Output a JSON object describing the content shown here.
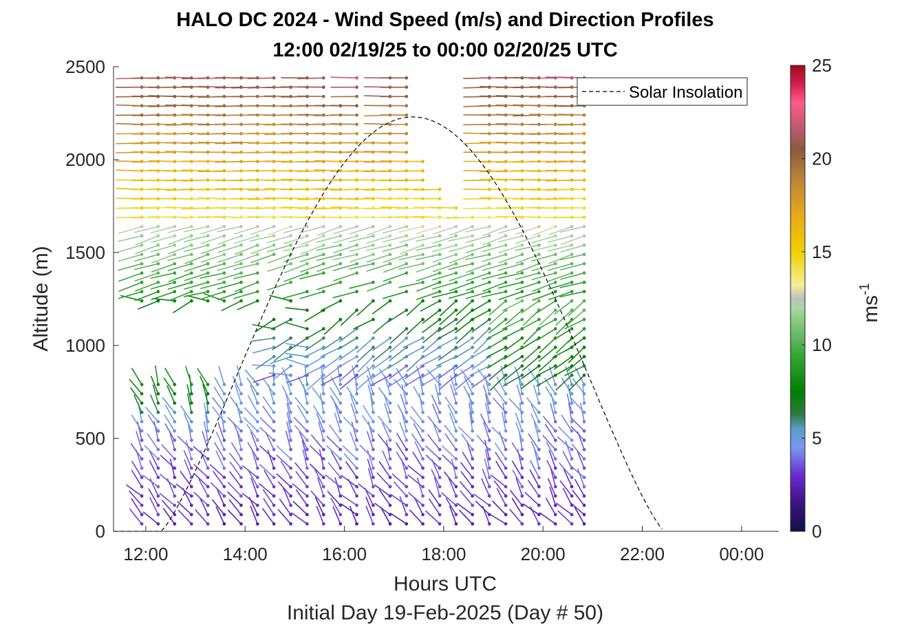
{
  "chart_data": {
    "type": "wind-barb-profile",
    "title_line1": "HALO DC 2024 - Wind Speed (m/s) and Direction Profiles",
    "title_line2": "12:00 02/19/25 to 00:00 02/20/25  UTC",
    "xlabel": "Hours UTC",
    "subtitle": "Initial Day 19-Feb-2025 (Day # 50)",
    "ylabel": "Altitude (m)",
    "xlim_hours": [
      11.35,
      24.75
    ],
    "ylim": [
      0,
      2500
    ],
    "x_ticks": [
      {
        "hour": 12,
        "label": "12:00"
      },
      {
        "hour": 14,
        "label": "14:00"
      },
      {
        "hour": 16,
        "label": "16:00"
      },
      {
        "hour": 18,
        "label": "18:00"
      },
      {
        "hour": 20,
        "label": "20:00"
      },
      {
        "hour": 22,
        "label": "22:00"
      },
      {
        "hour": 24,
        "label": "00:00"
      }
    ],
    "y_ticks": [
      0,
      500,
      1000,
      1500,
      2000,
      2500
    ],
    "colorbar": {
      "label": "ms",
      "label_superscript": "-1",
      "range": [
        0,
        25
      ],
      "ticks": [
        0,
        5,
        10,
        15,
        20,
        25
      ],
      "stops": [
        {
          "v": 0,
          "c": "#10104a"
        },
        {
          "v": 1.5,
          "c": "#3a1480"
        },
        {
          "v": 3,
          "c": "#6a2ad0"
        },
        {
          "v": 4.5,
          "c": "#7a98ee"
        },
        {
          "v": 5.5,
          "c": "#5a9cc8"
        },
        {
          "v": 6.3,
          "c": "#2c7a40"
        },
        {
          "v": 7.5,
          "c": "#008000"
        },
        {
          "v": 9.5,
          "c": "#3aa63a"
        },
        {
          "v": 12,
          "c": "#a8d8a0"
        },
        {
          "v": 12.5,
          "c": "#c0c0c0"
        },
        {
          "v": 13.2,
          "c": "#f4ee9a"
        },
        {
          "v": 15,
          "c": "#f0d000"
        },
        {
          "v": 17,
          "c": "#e8a818"
        },
        {
          "v": 19,
          "c": "#b8823c"
        },
        {
          "v": 20.5,
          "c": "#8a5a3c"
        },
        {
          "v": 21.5,
          "c": "#b85a6a"
        },
        {
          "v": 23,
          "c": "#ff5a8a"
        },
        {
          "v": 24,
          "c": "#d02050"
        },
        {
          "v": 25,
          "c": "#a00a1a"
        }
      ]
    },
    "legend": {
      "label": "Solar Insolation",
      "position": "top-right",
      "style": "dashed black"
    },
    "solar_insolation": {
      "rise_hour": 12.3,
      "set_hour": 22.45,
      "peak_hour": 17.4,
      "peak_altitude_equivalent": 2230
    },
    "profiles_hours": [
      11.92,
      12.25,
      12.58,
      12.92,
      13.25,
      13.58,
      13.92,
      14.25,
      14.58,
      14.92,
      15.25,
      15.58,
      15.92,
      16.25,
      16.58,
      16.92,
      17.25,
      17.58,
      17.92,
      18.25,
      18.58,
      18.92,
      19.25,
      19.58,
      19.92,
      20.25,
      20.58,
      20.83
    ],
    "profile_tops_m": [
      2450,
      2450,
      2450,
      2450,
      2450,
      2450,
      2450,
      2450,
      2450,
      2400,
      2450,
      2450,
      2300,
      2450,
      2100,
      2450,
      2450,
      2000,
      1850,
      1750,
      1700,
      2450,
      2450,
      2450,
      2450,
      2450,
      2450,
      2450
    ],
    "layers": [
      {
        "from_m": 30,
        "to_m": 800,
        "speed_ms": "2-5",
        "direction": "southerly, veering with height"
      },
      {
        "from_m": 800,
        "to_m": 1250,
        "speed_ms": "3-8",
        "direction": "northwesterly"
      },
      {
        "from_m": 1250,
        "to_m": 1650,
        "speed_ms": "8-12",
        "direction": "westerly"
      },
      {
        "from_m": 1650,
        "to_m": 2500,
        "speed_ms": "13-22",
        "direction": "westerly"
      }
    ]
  }
}
